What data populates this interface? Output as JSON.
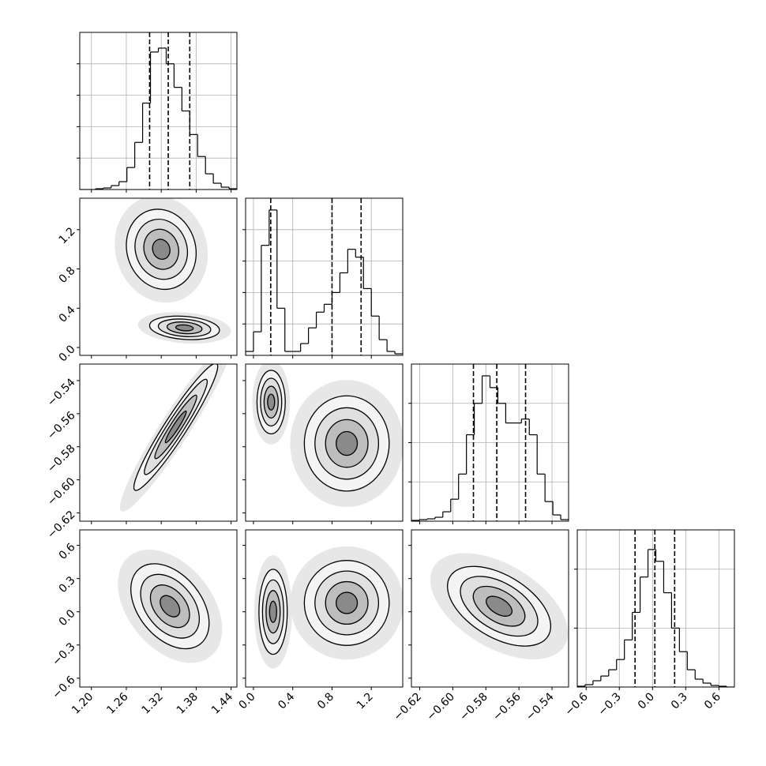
{
  "chart_data": {
    "type": "corner",
    "grid": true,
    "color": "#000000",
    "params": [
      {
        "lim": [
          1.18,
          1.45
        ],
        "ticks": [
          {
            "value": 1.2,
            "label": "1.20"
          },
          1.26,
          1.32,
          1.38,
          1.44
        ],
        "quantiles": [
          1.3,
          1.332,
          1.369
        ],
        "bins": [
          1.18,
          1.1935,
          1.207,
          1.2205,
          1.234,
          1.2475,
          1.261,
          1.2745,
          1.288,
          1.3015,
          1.315,
          1.3285,
          1.342,
          1.3555,
          1.369,
          1.3825,
          1.396,
          1.4095,
          1.423,
          1.4365,
          1.45
        ],
        "counts": [
          0,
          0,
          1,
          2,
          5,
          10,
          28,
          60,
          110,
          175,
          180,
          160,
          130,
          100,
          70,
          42,
          20,
          8,
          3,
          1
        ],
        "hist_ylim": [
          0,
          200
        ],
        "hist_yticks": [
          40,
          80,
          120,
          160
        ]
      },
      {
        "lim": [
          -0.08,
          1.52
        ],
        "ticks": [
          {
            "value": 0,
            "label": "0.0"
          },
          0.4,
          0.8,
          1.2
        ],
        "quantiles": [
          0.176,
          0.8,
          1.096
        ],
        "bins": [
          -0.08,
          0,
          0.08,
          0.16,
          0.24,
          0.32,
          0.4,
          0.48,
          0.56,
          0.64,
          0.72,
          0.8,
          0.88,
          0.96,
          1.04,
          1.12,
          1.2,
          1.28,
          1.36,
          1.44,
          1.52
        ],
        "counts": [
          5,
          30,
          140,
          185,
          60,
          5,
          5,
          15,
          35,
          55,
          65,
          80,
          105,
          135,
          125,
          85,
          50,
          20,
          5,
          2
        ],
        "hist_ylim": [
          0,
          200
        ],
        "hist_yticks": [
          40,
          80,
          120,
          160
        ]
      },
      {
        "lim": [
          -0.625,
          -0.53
        ],
        "ticks": [
          {
            "value": -0.62,
            "label": "−0.62"
          },
          {
            "value": -0.6,
            "label": "−0.60"
          },
          {
            "value": -0.58,
            "label": "−0.58"
          },
          {
            "value": -0.56,
            "label": "−0.56"
          },
          {
            "value": -0.54,
            "label": "−0.54"
          }
        ],
        "quantiles": [
          -0.5875,
          -0.5734,
          -0.556
        ],
        "bins": [
          -0.625,
          -0.62025,
          -0.6155,
          -0.61075,
          -0.606,
          -0.60125,
          -0.5965,
          -0.59175,
          -0.587,
          -0.58225,
          -0.5775,
          -0.57275,
          -0.568,
          -0.56325,
          -0.5585,
          -0.55375,
          -0.549,
          -0.54425,
          -0.5395,
          -0.53475,
          -0.53
        ],
        "counts": [
          1,
          2,
          3,
          5,
          12,
          28,
          60,
          110,
          150,
          185,
          170,
          150,
          125,
          125,
          130,
          110,
          60,
          25,
          8,
          2
        ],
        "hist_ylim": [
          0,
          200
        ],
        "hist_yticks": [
          50,
          100,
          150
        ]
      },
      {
        "lim": [
          -0.68,
          0.74
        ],
        "ticks": [
          {
            "value": -0.6,
            "label": "−0.6"
          },
          {
            "value": -0.3,
            "label": "−0.3"
          },
          {
            "value": 0,
            "label": "0.0"
          },
          0.3,
          0.6
        ],
        "quantiles": [
          -0.158,
          0.021,
          0.2
        ],
        "bins": [
          -0.68,
          -0.609,
          -0.538,
          -0.467,
          -0.396,
          -0.325,
          -0.254,
          -0.183,
          -0.112,
          -0.041,
          0.03,
          0.101,
          0.172,
          0.243,
          0.314,
          0.385,
          0.456,
          0.527,
          0.598,
          0.669,
          0.74
        ],
        "counts": [
          1,
          3,
          8,
          14,
          22,
          35,
          60,
          95,
          140,
          175,
          160,
          120,
          75,
          45,
          22,
          10,
          5,
          2,
          1,
          0
        ],
        "hist_ylim": [
          0,
          200
        ],
        "hist_yticks": [
          75,
          150
        ]
      }
    ],
    "panels": [
      {
        "x": 0,
        "y": 1,
        "modes": [
          {
            "cx": 1.32,
            "cy": 1.0,
            "sx": 0.025,
            "sy": 0.17,
            "rho": -0.1
          },
          {
            "cx": 1.36,
            "cy": 0.2,
            "sx": 0.025,
            "sy": 0.05,
            "rho": -0.2
          }
        ]
      },
      {
        "x": 0,
        "y": 2,
        "modes": [
          {
            "cx": 1.345,
            "cy": -0.568,
            "sx": 0.03,
            "sy": 0.016,
            "rho": 0.95
          }
        ]
      },
      {
        "x": 0,
        "y": 3,
        "modes": [
          {
            "cx": 1.335,
            "cy": 0.05,
            "sx": 0.028,
            "sy": 0.16,
            "rho": -0.4
          }
        ]
      },
      {
        "x": 1,
        "y": 2,
        "modes": [
          {
            "cx": 0.18,
            "cy": -0.553,
            "sx": 0.06,
            "sy": 0.008,
            "rho": 0
          },
          {
            "cx": 0.95,
            "cy": -0.578,
            "sx": 0.18,
            "sy": 0.012,
            "rho": 0
          }
        ]
      },
      {
        "x": 1,
        "y": 3,
        "modes": [
          {
            "cx": 0.2,
            "cy": 0.0,
            "sx": 0.06,
            "sy": 0.16,
            "rho": 0
          },
          {
            "cx": 0.95,
            "cy": 0.08,
            "sx": 0.18,
            "sy": 0.16,
            "rho": 0
          }
        ]
      },
      {
        "x": 2,
        "y": 3,
        "modes": [
          {
            "cx": -0.572,
            "cy": 0.05,
            "sx": 0.013,
            "sy": 0.15,
            "rho": -0.5
          }
        ]
      }
    ]
  }
}
